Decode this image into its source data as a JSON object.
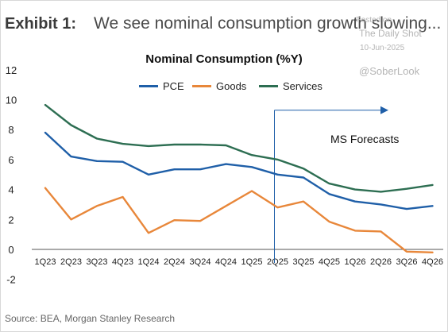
{
  "header": {
    "exhibit_label": "Exhibit 1:",
    "title": "We see nominal consumption growth slowing..."
  },
  "watermark": {
    "posted_on": "Posted on",
    "site": "The Daily Shot",
    "date": "10-Jun-2025",
    "handle": "@SoberLook"
  },
  "source": "Source: BEA, Morgan Stanley Research",
  "chart_data": {
    "type": "line",
    "title": "Nominal Consumption (%Y)",
    "xlabel": "",
    "ylabel": "",
    "categories": [
      "1Q23",
      "2Q23",
      "3Q23",
      "4Q23",
      "1Q24",
      "2Q24",
      "3Q24",
      "4Q24",
      "1Q25",
      "2Q25",
      "3Q25",
      "4Q25",
      "1Q26",
      "2Q26",
      "3Q26",
      "4Q26"
    ],
    "ylim": [
      -2,
      12
    ],
    "yticks": [
      -2,
      0,
      2,
      4,
      6,
      8,
      10,
      12
    ],
    "grid": false,
    "legend_position": "top-center",
    "series": [
      {
        "name": "PCE",
        "color": "#1f5fa8",
        "values": [
          7.8,
          6.2,
          5.9,
          5.85,
          5.0,
          5.35,
          5.35,
          5.7,
          5.5,
          5.0,
          4.8,
          3.7,
          3.2,
          3.0,
          2.7,
          2.9
        ]
      },
      {
        "name": "Goods",
        "color": "#e8873a",
        "values": [
          4.1,
          2.0,
          2.9,
          3.5,
          1.1,
          1.95,
          1.9,
          2.9,
          3.9,
          2.8,
          3.2,
          1.85,
          1.25,
          1.2,
          -0.15,
          -0.2
        ]
      },
      {
        "name": "Services",
        "color": "#2d6e52",
        "values": [
          9.65,
          8.3,
          7.4,
          7.05,
          6.9,
          7.0,
          7.0,
          6.95,
          6.3,
          6.0,
          5.4,
          4.4,
          4.0,
          3.85,
          4.05,
          4.3
        ]
      }
    ],
    "annotation": {
      "text": "MS Forecasts",
      "start_category": "2Q25",
      "line_color": "#1f5fa8"
    }
  }
}
